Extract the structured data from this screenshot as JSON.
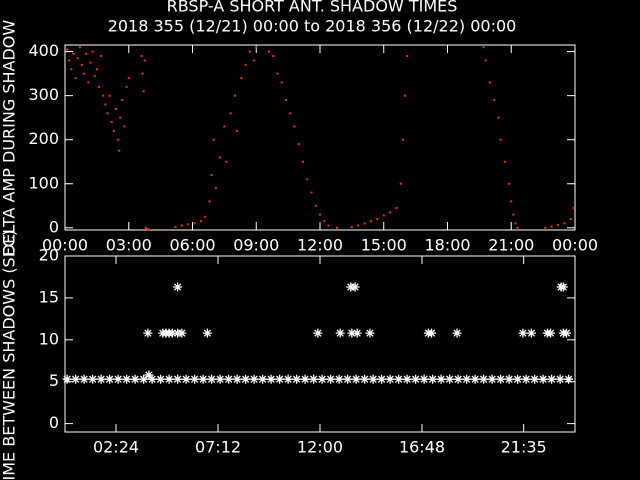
{
  "chart_data": [
    {
      "type": "scatter",
      "title": "RBSP-A SHORT ANT. SHADOW TIMES",
      "subtitle": "2018 355 (12/21) 00:00 to 2018 356 (12/22) 00:00",
      "y_label": "DELTA AMP DURING SHADOW",
      "color": "#ff2a10",
      "marker": "dot",
      "xlim": [
        0,
        24
      ],
      "ylim": [
        -5,
        415
      ],
      "xticks": [
        {
          "value": 0,
          "label": "00:00"
        },
        {
          "value": 3,
          "label": "03:00"
        },
        {
          "value": 6,
          "label": "06:00"
        },
        {
          "value": 9,
          "label": "09:00"
        },
        {
          "value": 12,
          "label": "12:00"
        },
        {
          "value": 15,
          "label": "15:00"
        },
        {
          "value": 18,
          "label": "18:00"
        },
        {
          "value": 21,
          "label": "21:00"
        },
        {
          "value": 24,
          "label": "00:00"
        }
      ],
      "yticks": [
        0,
        100,
        200,
        300,
        400
      ],
      "x": [
        0.1,
        0.2,
        0.3,
        0.4,
        0.5,
        0.6,
        0.7,
        0.8,
        0.9,
        1.0,
        1.1,
        1.2,
        1.3,
        1.4,
        1.5,
        1.6,
        1.7,
        1.8,
        1.9,
        2.0,
        2.1,
        2.2,
        2.3,
        2.4,
        2.5,
        2.55,
        2.6,
        2.7,
        2.8,
        2.9,
        3.0,
        3.6,
        3.65,
        3.7,
        3.75,
        3.8,
        3.9,
        4.0,
        5.2,
        5.5,
        5.8,
        6.1,
        6.4,
        6.6,
        6.8,
        6.9,
        7.0,
        7.1,
        7.3,
        7.5,
        7.6,
        7.8,
        8.0,
        8.1,
        8.3,
        8.5,
        8.7,
        8.9,
        9.0,
        9.6,
        9.8,
        10.0,
        10.2,
        10.4,
        10.6,
        10.8,
        11.0,
        11.2,
        11.4,
        11.6,
        11.8,
        12.0,
        12.2,
        12.4,
        12.8,
        13.5,
        13.8,
        14.1,
        14.4,
        14.7,
        15.0,
        15.3,
        15.6,
        15.8,
        15.9,
        16.0,
        16.1,
        19.7,
        19.8,
        20.0,
        20.2,
        20.4,
        20.5,
        20.7,
        20.9,
        21.0,
        21.1,
        21.2,
        21.3,
        22.6,
        22.9,
        23.2,
        23.5,
        23.8,
        23.95
      ],
      "values": [
        405,
        380,
        360,
        395,
        340,
        385,
        410,
        370,
        350,
        395,
        330,
        375,
        400,
        345,
        360,
        320,
        390,
        300,
        280,
        260,
        300,
        240,
        220,
        270,
        200,
        175,
        250,
        290,
        230,
        320,
        340,
        390,
        350,
        310,
        380,
        0,
        -3,
        -5,
        2,
        5,
        8,
        10,
        15,
        25,
        60,
        120,
        200,
        90,
        160,
        230,
        150,
        260,
        300,
        220,
        340,
        370,
        400,
        380,
        410,
        400,
        390,
        350,
        330,
        290,
        260,
        230,
        190,
        150,
        110,
        80,
        50,
        30,
        15,
        5,
        0,
        2,
        5,
        10,
        15,
        20,
        28,
        35,
        45,
        100,
        200,
        300,
        390,
        410,
        380,
        330,
        290,
        250,
        200,
        150,
        100,
        60,
        30,
        10,
        0,
        0,
        3,
        6,
        10,
        20,
        45
      ]
    },
    {
      "type": "scatter",
      "y_label": "TIME BETWEEN SHADOWS (SEC)",
      "color": "#ffffff",
      "marker": "asterisk",
      "xlim": [
        0,
        24
      ],
      "ylim": [
        -1,
        20
      ],
      "xticks": [
        {
          "value": 2.4,
          "label": "02:24"
        },
        {
          "value": 7.2,
          "label": "07:12"
        },
        {
          "value": 12,
          "label": "12:00"
        },
        {
          "value": 16.8,
          "label": "16:48"
        },
        {
          "value": 21.583,
          "label": "21:35"
        }
      ],
      "yticks": [
        0,
        5,
        10,
        15,
        20
      ],
      "x": [
        0.1,
        0.5,
        0.9,
        1.3,
        1.7,
        2.1,
        2.5,
        2.9,
        3.3,
        3.7,
        4.1,
        4.5,
        4.9,
        5.3,
        5.7,
        6.1,
        6.5,
        6.9,
        7.3,
        7.7,
        8.1,
        8.5,
        8.9,
        9.3,
        9.7,
        10.1,
        10.5,
        10.9,
        11.3,
        11.7,
        12.1,
        12.5,
        12.9,
        13.3,
        13.7,
        14.1,
        14.5,
        14.9,
        15.3,
        15.7,
        16.1,
        16.5,
        16.9,
        17.3,
        17.7,
        18.1,
        18.5,
        18.9,
        19.3,
        19.7,
        20.1,
        20.5,
        20.9,
        21.3,
        21.7,
        22.1,
        22.5,
        22.9,
        23.3,
        23.7,
        3.9,
        3.95,
        4.6,
        4.75,
        4.9,
        5.05,
        5.3,
        5.3,
        5.5,
        6.7,
        11.9,
        12.95,
        13.45,
        13.65,
        13.5,
        13.75,
        14.35,
        17.1,
        17.25,
        18.45,
        21.55,
        21.95,
        22.7,
        22.85,
        23.35,
        23.45,
        23.45,
        23.6
      ],
      "values": [
        5.3,
        5.3,
        5.3,
        5.3,
        5.3,
        5.3,
        5.3,
        5.3,
        5.3,
        5.3,
        5.3,
        5.3,
        5.3,
        5.3,
        5.3,
        5.3,
        5.3,
        5.3,
        5.3,
        5.3,
        5.3,
        5.3,
        5.3,
        5.3,
        5.3,
        5.3,
        5.3,
        5.3,
        5.3,
        5.3,
        5.3,
        5.3,
        5.3,
        5.3,
        5.3,
        5.3,
        5.3,
        5.3,
        5.3,
        5.3,
        5.3,
        5.3,
        5.3,
        5.3,
        5.3,
        5.3,
        5.3,
        5.3,
        5.3,
        5.3,
        5.3,
        5.3,
        5.3,
        5.3,
        5.3,
        5.3,
        5.3,
        5.3,
        5.3,
        5.3,
        10.8,
        5.8,
        10.8,
        10.8,
        10.8,
        10.8,
        16.3,
        10.8,
        10.8,
        10.8,
        10.8,
        10.8,
        16.3,
        16.3,
        10.8,
        10.8,
        10.8,
        10.8,
        10.8,
        10.8,
        10.8,
        10.8,
        10.8,
        10.8,
        16.3,
        16.3,
        10.8,
        10.8
      ]
    }
  ]
}
